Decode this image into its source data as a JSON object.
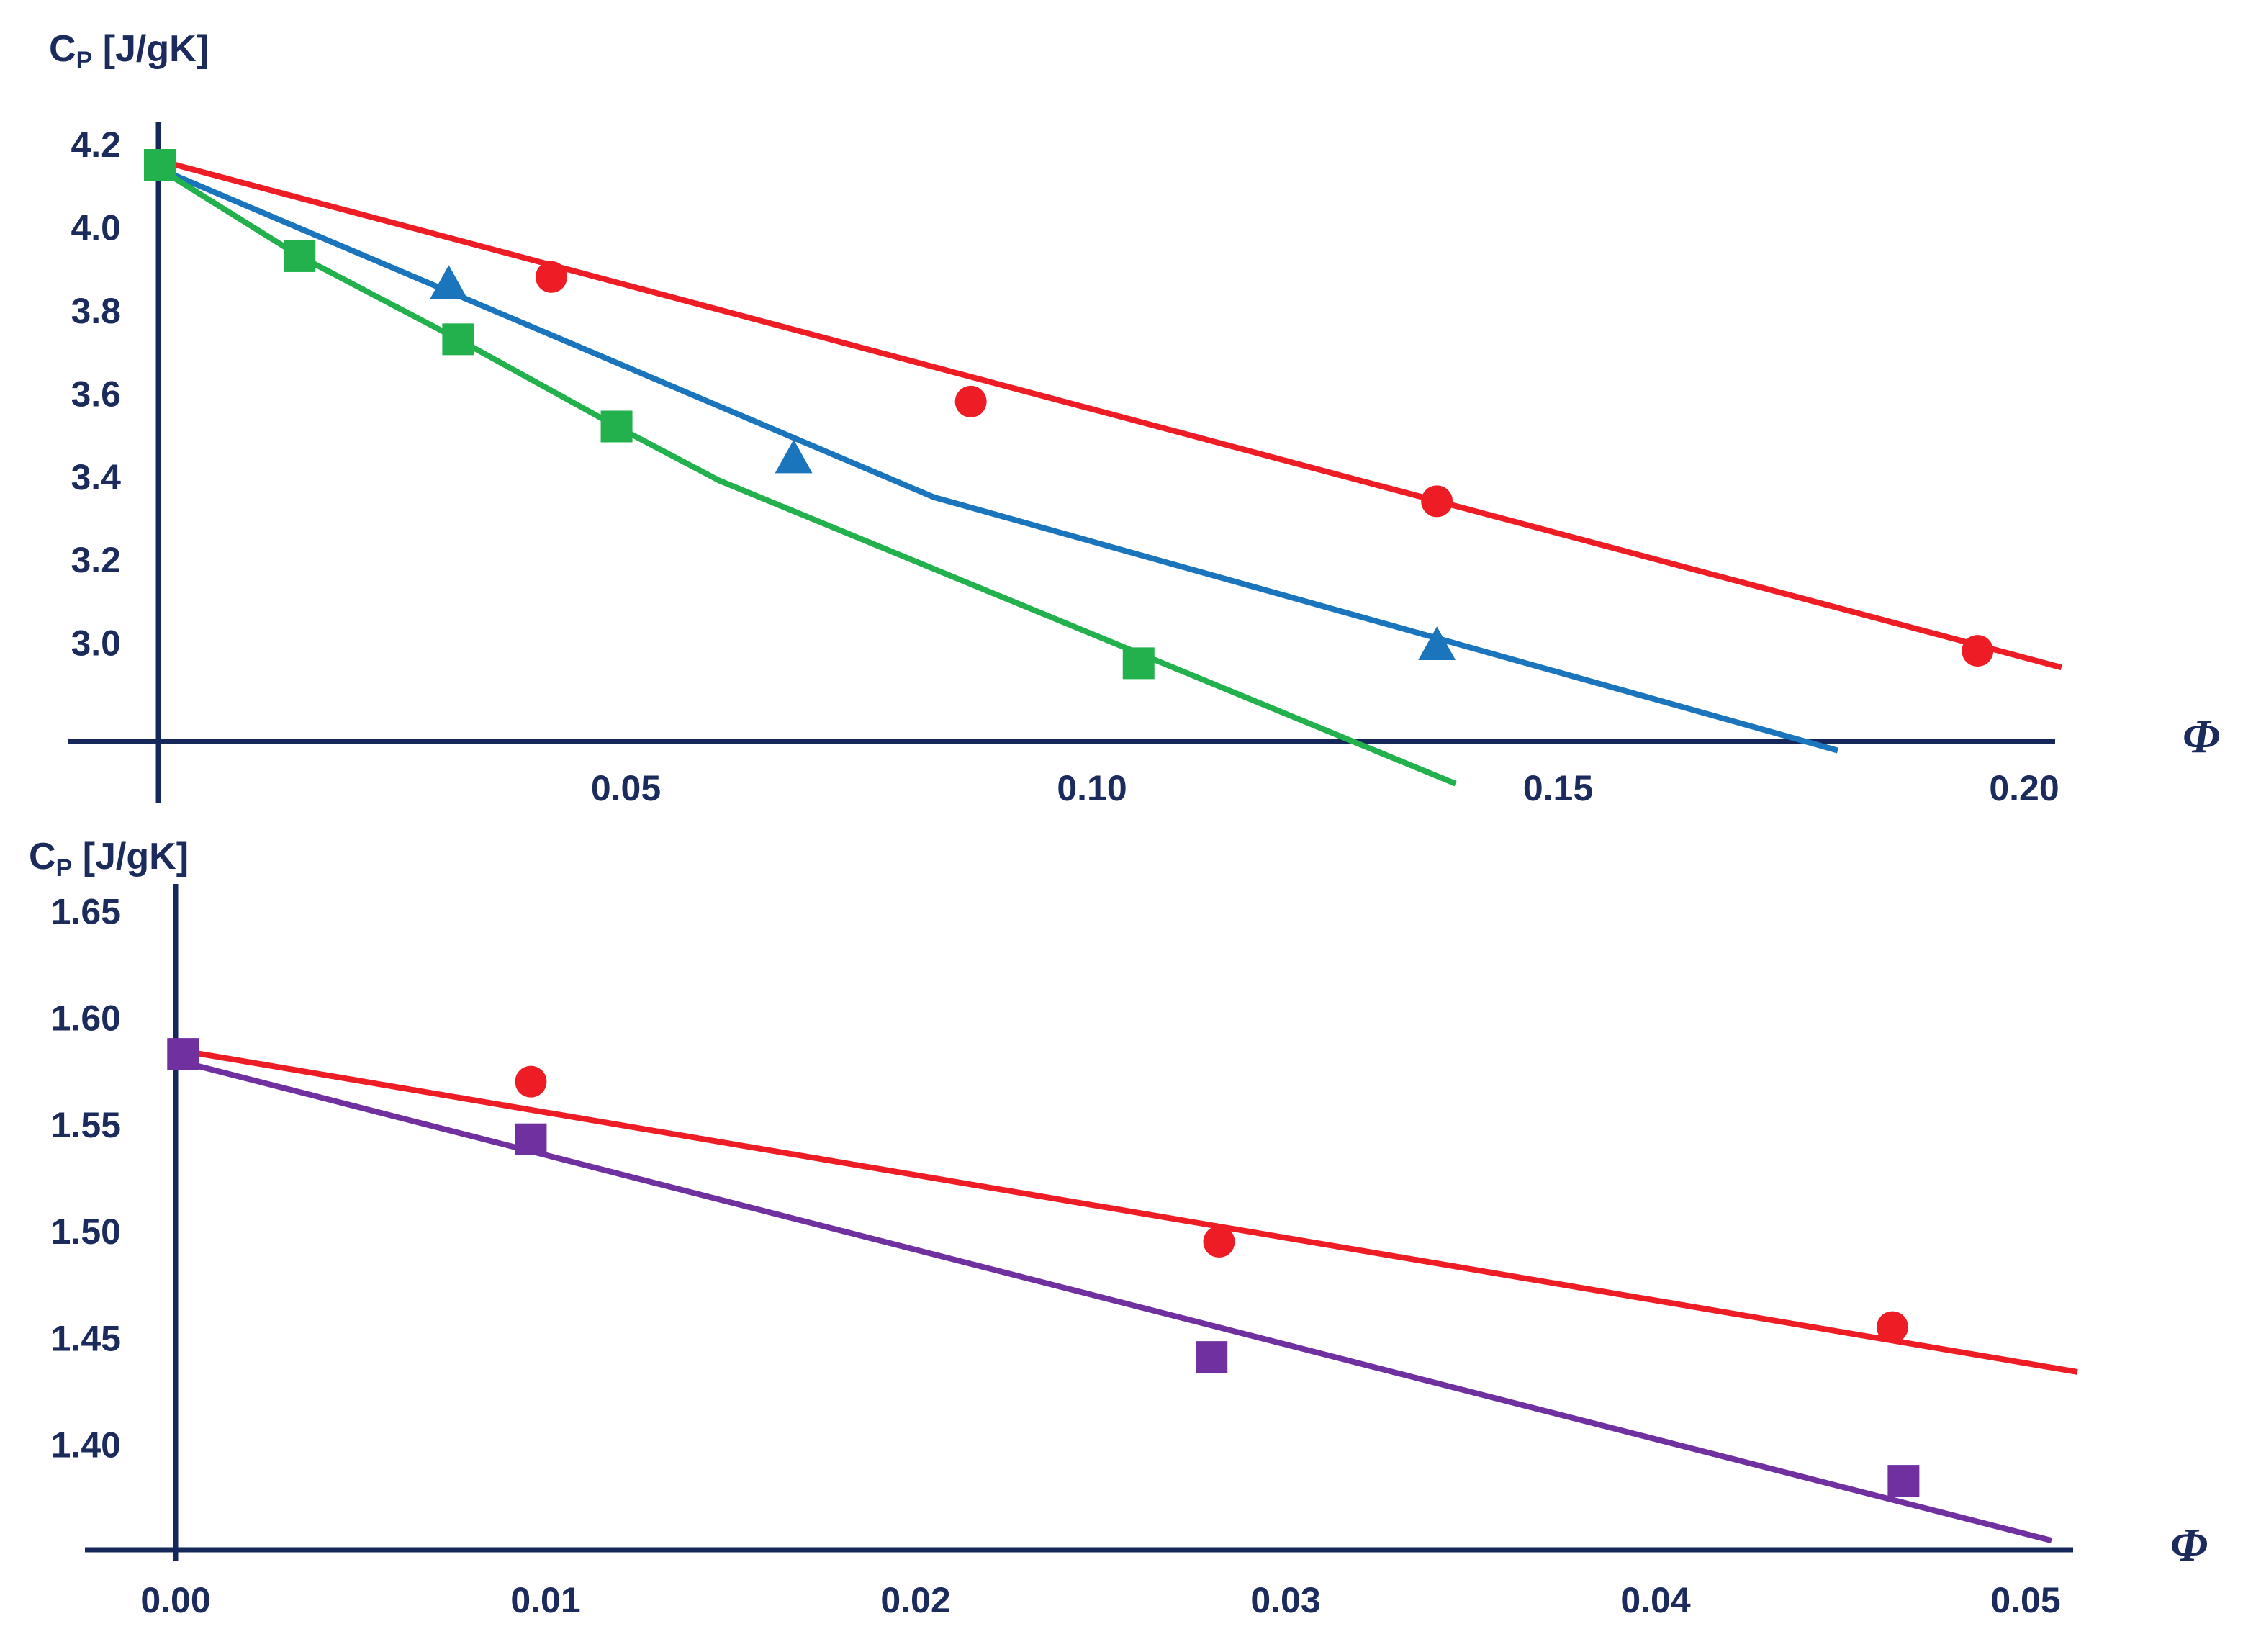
{
  "chart_data": [
    {
      "type": "line",
      "ylabel_main": "C",
      "ylabel_sub": "P",
      "ylabel_unit": " [J/gK]",
      "xlabel": "Φ",
      "xlim": [
        0.0,
        0.2
      ],
      "ylim": [
        2.8,
        4.25
      ],
      "x_ticks": [
        "0.05",
        "0.10",
        "0.15",
        "0.20"
      ],
      "x_tick_values": [
        0.05,
        0.1,
        0.15,
        0.2
      ],
      "y_ticks": [
        "4.2",
        "4.0",
        "3.8",
        "3.6",
        "3.4",
        "3.2",
        "3.0"
      ],
      "y_tick_values": [
        4.2,
        4.0,
        3.8,
        3.6,
        3.4,
        3.2,
        3.0
      ],
      "series": [
        {
          "color": "#ee1c24",
          "marker": "circle",
          "points": [
            [
              0.042,
              3.88
            ],
            [
              0.087,
              3.58
            ],
            [
              0.137,
              3.34
            ],
            [
              0.195,
              2.98
            ]
          ],
          "line": [
            [
              0.0,
              4.16
            ],
            [
              0.204,
              2.94
            ]
          ]
        },
        {
          "color": "#1b75bc",
          "marker": "triangle",
          "points": [
            [
              0.031,
              3.86
            ],
            [
              0.068,
              3.44
            ],
            [
              0.137,
              2.99
            ]
          ],
          "line": [
            [
              0.0,
              4.14
            ],
            [
              0.083,
              3.35
            ],
            [
              0.18,
              2.74
            ]
          ]
        },
        {
          "color": "#22b14c",
          "marker": "square",
          "points": [
            [
              0.0,
              4.15
            ],
            [
              0.015,
              3.93
            ],
            [
              0.032,
              3.73
            ],
            [
              0.049,
              3.52
            ],
            [
              0.105,
              2.95
            ]
          ],
          "line": [
            [
              0.0,
              4.14
            ],
            [
              0.015,
              3.93
            ],
            [
              0.032,
              3.73
            ],
            [
              0.049,
              3.52
            ],
            [
              0.06,
              3.39
            ],
            [
              0.139,
              2.66
            ]
          ]
        }
      ]
    },
    {
      "type": "line",
      "ylabel_main": "C",
      "ylabel_sub": "P",
      "ylabel_unit": " [J/gK]",
      "xlabel": "Φ",
      "xlim": [
        0.0,
        0.051
      ],
      "ylim": [
        1.355,
        1.675
      ],
      "x_ticks": [
        "0.00",
        "0.01",
        "0.02",
        "0.03",
        "0.04",
        "0.05"
      ],
      "x_tick_values": [
        0.0,
        0.01,
        0.02,
        0.03,
        0.04,
        0.05
      ],
      "y_ticks": [
        "1.65",
        "1.60",
        "1.55",
        "1.50",
        "1.45",
        "1.40"
      ],
      "y_tick_values": [
        1.65,
        1.6,
        1.55,
        1.5,
        1.45,
        1.4
      ],
      "series": [
        {
          "color": "#ee1c24",
          "marker": "circle",
          "points": [
            [
              0.0096,
              1.57
            ],
            [
              0.0282,
              1.495
            ],
            [
              0.0464,
              1.455
            ]
          ],
          "line": [
            [
              0.0,
              1.585
            ],
            [
              0.0514,
              1.434
            ]
          ]
        },
        {
          "color": "#7030a0",
          "marker": "square",
          "points": [
            [
              0.0002,
              1.583
            ],
            [
              0.0096,
              1.543
            ],
            [
              0.028,
              1.441
            ],
            [
              0.0467,
              1.383
            ]
          ],
          "line": [
            [
              0.0,
              1.58
            ],
            [
              0.0507,
              1.355
            ]
          ]
        }
      ]
    }
  ]
}
